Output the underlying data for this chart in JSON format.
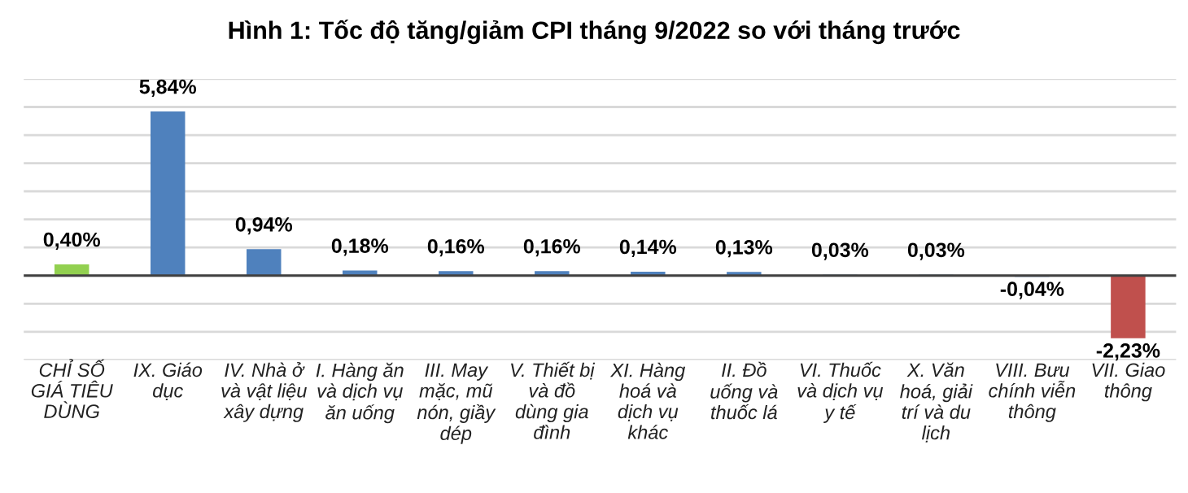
{
  "chart_data": {
    "type": "bar",
    "title": "Hình 1: Tốc độ tăng/giảm CPI tháng 9/2022 so với tháng trước",
    "categories": [
      "CHỈ SỐ\nGIÁ TIÊU\nDÙNG",
      "IX. Giáo\ndục",
      "IV. Nhà ở\nvà vật liệu\nxây dựng",
      "I. Hàng ăn\nvà dịch vụ\năn uống",
      "III. May\nmặc, mũ\nnón, giầy\ndép",
      "V. Thiết bị\nvà đồ\ndùng gia\nđình",
      "XI. Hàng\nhoá và\ndịch vụ\nkhác",
      "II. Đồ\nuống và\nthuốc lá",
      "VI. Thuốc\nvà dịch vụ\ny tế",
      "X. Văn\nhoá, giải\ntrí và du\nlịch",
      "VIII. Bưu\nchính viễn\nthông",
      "VII. Giao\nthông"
    ],
    "values": [
      0.4,
      5.84,
      0.94,
      0.18,
      0.16,
      0.16,
      0.14,
      0.13,
      0.03,
      0.03,
      -0.04,
      -2.23
    ],
    "value_labels": [
      "0,40%",
      "5,84%",
      "0,94%",
      "0,18%",
      "0,16%",
      "0,16%",
      "0,14%",
      "0,13%",
      "0,03%",
      "0,03%",
      "-0,04%",
      "-2,23%"
    ],
    "colors": [
      "#92d050",
      "#4f81bd",
      "#4f81bd",
      "#4f81bd",
      "#4f81bd",
      "#4f81bd",
      "#4f81bd",
      "#4f81bd",
      "#4f81bd",
      "#4f81bd",
      "#4f81bd",
      "#c0504d"
    ],
    "ylim": [
      -3,
      7
    ],
    "yticks": [
      {
        "value": -3,
        "label": null
      },
      {
        "value": -2,
        "label": null
      },
      {
        "value": -1,
        "label": null
      },
      {
        "value": 0,
        "label": null
      },
      {
        "value": 1,
        "label": null
      },
      {
        "value": 2,
        "label": null
      },
      {
        "value": 3,
        "label": null
      },
      {
        "value": 4,
        "label": null
      },
      {
        "value": 5,
        "label": null
      },
      {
        "value": 6,
        "label": null
      },
      {
        "value": 7,
        "label": null
      }
    ],
    "grid": "y",
    "legend": false
  }
}
